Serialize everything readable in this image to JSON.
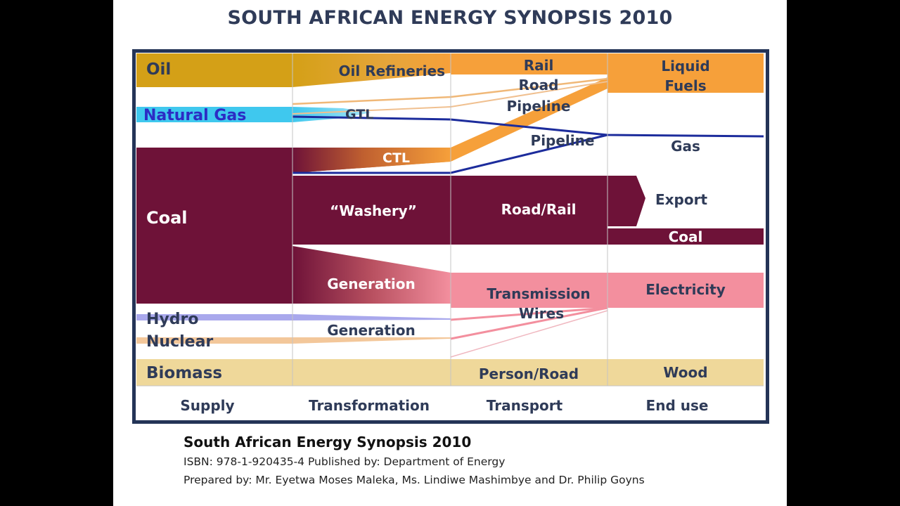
{
  "slide": {
    "title": "SOUTH AFRICAN ENERGY SYNOPSIS 2010"
  },
  "diagram": {
    "columns": [
      "Supply",
      "Transformation",
      "Transport",
      "End use"
    ],
    "supply": {
      "oil": "Oil",
      "natural_gas": "Natural Gas",
      "coal": "Coal",
      "hydro": "Hydro",
      "nuclear": "Nuclear",
      "biomass": "Biomass"
    },
    "transformation": {
      "oil_refineries": "Oil Refineries",
      "gtl": "GTL",
      "ctl": "CTL",
      "washery": "“Washery”",
      "generation_coal": "Generation",
      "generation_hydro_nuclear": "Generation"
    },
    "transport": {
      "rail": "Rail",
      "road": "Road",
      "pipeline_fuel": "Pipeline",
      "pipeline_gas": "Pipeline",
      "road_rail": "Road/Rail",
      "transmission": "Transmission",
      "wires": "Wires",
      "person_road": "Person/Road"
    },
    "end_use": {
      "liquid_fuels_line1": "Liquid",
      "liquid_fuels_line2": "Fuels",
      "gas": "Gas",
      "export": "Export",
      "coal": "Coal",
      "electricity": "Electricity",
      "wood": "Wood"
    },
    "colors": {
      "oil": "#d4a017",
      "natural_gas": "#3fc8ee",
      "gas_line": "#1c2c9c",
      "liquid_fuels": "#f6a03a",
      "coal": "#6e1238",
      "electricity": "#f38f9e",
      "hydro": "#a9a8ec",
      "nuclear": "#f3c79a",
      "biomass": "#efd89a",
      "frame": "#243457",
      "label_dark": "#2f3b58"
    }
  },
  "caption": {
    "title": "South African Energy Synopsis 2010",
    "isbn_line": "ISBN: 978-1-920435-4  Published by:  Department of Energy",
    "prepared_line": "Prepared by: Mr. Eyetwa Moses Maleka, Ms. Lindiwe Mashimbye and Dr. Philip Goyns"
  }
}
